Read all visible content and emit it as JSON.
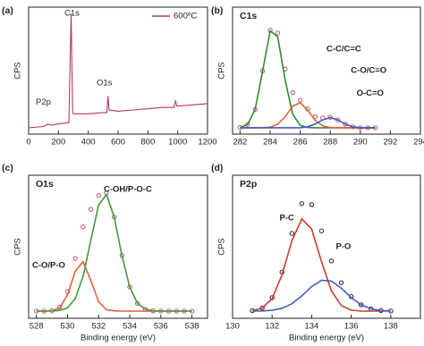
{
  "chart_data": [
    {
      "type": "line",
      "panel": "(a)",
      "ylabel": "CPS",
      "xlim": [
        0,
        1200
      ],
      "xticks": [
        0,
        200,
        400,
        600,
        800,
        1000,
        1200
      ],
      "ylim": [
        0,
        100
      ],
      "x": [
        0,
        100,
        130,
        150,
        200,
        270,
        285,
        295,
        300,
        400,
        500,
        525,
        532,
        540,
        600,
        700,
        800,
        900,
        975,
        985,
        995,
        1100,
        1200
      ],
      "series": [
        {
          "name": "600ºC",
          "color": "#c0306a",
          "values": [
            5,
            6,
            8,
            7,
            8,
            9,
            95,
            18,
            16,
            16,
            17,
            17,
            30,
            19,
            18,
            19,
            20,
            21,
            21,
            26,
            22,
            23,
            24
          ]
        }
      ],
      "annotations": [
        "C1s",
        "O1s",
        "P2p"
      ],
      "legend": "upper right"
    },
    {
      "type": "line",
      "panel": "(b)",
      "title": "C1s",
      "ylabel": "CPS",
      "xlim": [
        281.5,
        294
      ],
      "xticks": [
        282,
        284,
        286,
        288,
        290,
        292,
        294
      ],
      "ylim": [
        0,
        100
      ],
      "x": [
        282,
        282.5,
        283,
        283.5,
        284,
        284.5,
        285,
        285.5,
        286,
        286.5,
        287,
        287.5,
        288,
        288.5,
        289,
        289.5,
        290,
        290.5,
        291
      ],
      "series": [
        {
          "color": "#c05080",
          "style": "dots",
          "values": [
            5.2,
            7.6,
            19.4,
            49.8,
            81.8,
            79.6,
            51.2,
            32.8,
            26.6,
            19.8,
            13.7,
            12.7,
            13.2,
            11.2,
            7.9,
            5.8,
            5,
            5,
            5
          ]
        },
        {
          "name": "C-C/C=C",
          "color": "#2e8b2e",
          "style": "line",
          "values": [
            5.2,
            7.6,
            19.4,
            49.8,
            81.3,
            76.9,
            42.5,
            15.8,
            6.8,
            5.2,
            5,
            5,
            5,
            5,
            5,
            5,
            5,
            5,
            5
          ]
        },
        {
          "name": "C-O/C=O",
          "color": "#e0603a",
          "style": "line",
          "values": [
            5,
            5,
            5,
            5,
            5.5,
            7.7,
            13.7,
            22,
            24.8,
            18.8,
            10.8,
            6.5,
            5.2,
            5,
            5,
            5,
            5,
            5,
            5
          ]
        },
        {
          "name": "O-C=O",
          "color": "#4058c0",
          "style": "line",
          "values": [
            5,
            5,
            5,
            5,
            5,
            5,
            5,
            5,
            5,
            5.8,
            7.9,
            11.2,
            13,
            11.2,
            7.9,
            5.8,
            5,
            5,
            5
          ]
        }
      ]
    },
    {
      "type": "line",
      "panel": "(c)",
      "title": "O1s",
      "ylabel": "CPS",
      "xlabel": "Binding energy (eV)",
      "xlim": [
        527.5,
        539
      ],
      "xticks": [
        528,
        530,
        532,
        534,
        536,
        538
      ],
      "ylim": [
        0,
        100
      ],
      "x": [
        528,
        528.5,
        529,
        529.5,
        530,
        530.5,
        531,
        531.5,
        532,
        532.5,
        533,
        533.5,
        534,
        534.5,
        535,
        535.5,
        536,
        536.5,
        537,
        537.5,
        538
      ],
      "series": [
        {
          "color": "#c05080",
          "style": "dots",
          "values": [
            5,
            5,
            5.3,
            7.8,
            18.7,
            41.8,
            63.9,
            76.2,
            85.8,
            87.5,
            70.8,
            43.9,
            21.9,
            10.4,
            6.3,
            5.2,
            5,
            5,
            5,
            5,
            5
          ]
        },
        {
          "name": "C-O/P-O",
          "color": "#e0603a",
          "style": "line",
          "values": [
            5,
            5,
            5.2,
            7.3,
            16.4,
            33,
            39.5,
            26.4,
            11.5,
            6,
            5.2,
            5,
            5,
            5,
            5,
            5,
            5,
            5,
            5,
            5,
            5
          ]
        },
        {
          "name": "C-OH/P-O-C",
          "color": "#3f9a3a",
          "style": "line",
          "values": [
            5,
            5,
            5.1,
            5.5,
            7.3,
            13.8,
            29.4,
            54.8,
            79.3,
            86.5,
            70.6,
            43.9,
            21.9,
            10.4,
            6.3,
            5.2,
            5,
            5,
            5,
            5,
            5
          ]
        }
      ]
    },
    {
      "type": "line",
      "panel": "(d)",
      "title": "P2p",
      "ylabel": "CPS",
      "xlabel": "Binding energy (eV)",
      "xlim": [
        130,
        139.5
      ],
      "xticks": [
        130,
        132,
        134,
        136,
        138
      ],
      "ylim": [
        0,
        100
      ],
      "x": [
        131,
        131.5,
        132,
        132.5,
        133,
        133.5,
        134,
        134.5,
        135,
        135.5,
        136,
        136.5,
        137,
        137.5,
        138
      ],
      "series": [
        {
          "color": "#222222",
          "style": "dots",
          "values": [
            5.3,
            7.2,
            14.4,
            32.3,
            59.3,
            80.2,
            79.5,
            61.1,
            40.1,
            24.9,
            15.2,
            9.4,
            6.6,
            5.4,
            5.1
          ]
        },
        {
          "name": "P-C",
          "color": "#d03a2a",
          "style": "line",
          "values": [
            5.3,
            7.1,
            13.8,
            30.3,
            54.1,
            69.5,
            62.3,
            39.5,
            19.1,
            8.9,
            5.7,
            5,
            5,
            5,
            5
          ]
        },
        {
          "name": "P-O",
          "color": "#4060c0",
          "style": "line",
          "values": [
            5,
            5.1,
            5.6,
            7,
            10.2,
            15.7,
            22.2,
            26.6,
            26,
            21,
            14.5,
            9.4,
            6.6,
            5.4,
            5.1
          ]
        }
      ]
    }
  ]
}
